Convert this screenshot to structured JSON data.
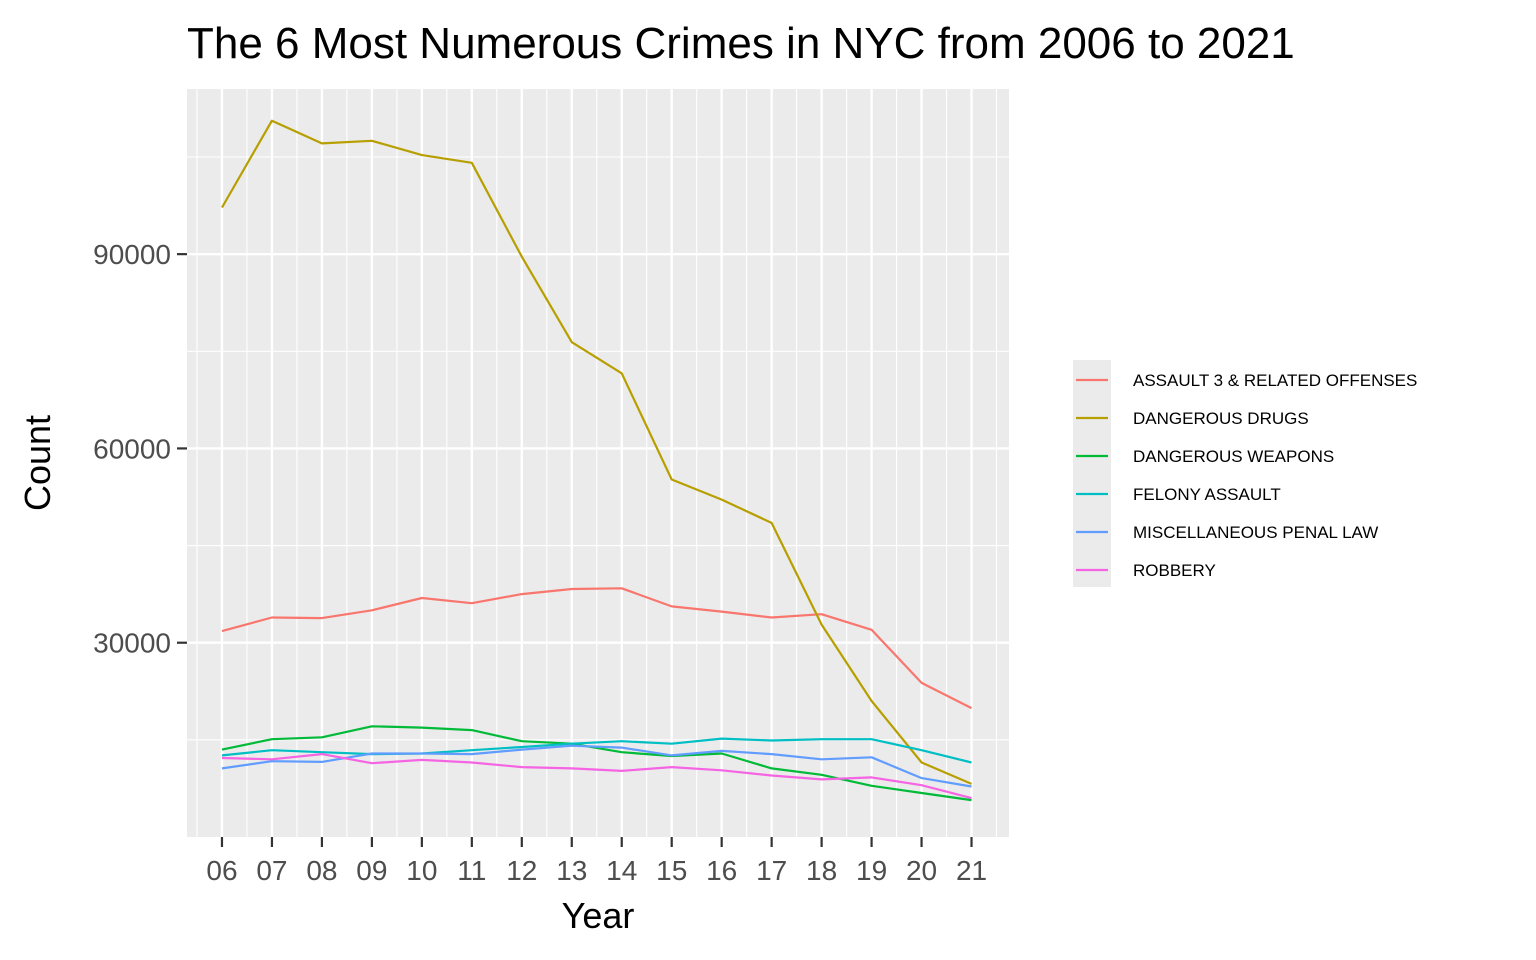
{
  "chart_data": {
    "type": "line",
    "title": "The 6 Most Numerous Crimes in NYC from 2006 to 2021",
    "xlabel": "Year",
    "ylabel": "Count",
    "x": [
      "06",
      "07",
      "08",
      "09",
      "10",
      "11",
      "12",
      "13",
      "14",
      "15",
      "16",
      "17",
      "18",
      "19",
      "20",
      "21"
    ],
    "xlim": [
      2005.3,
      2021.75
    ],
    "ylim": [
      0,
      115500
    ],
    "y_ticks": [
      30000,
      60000,
      90000
    ],
    "y_tick_labels": [
      "30000",
      "60000",
      "90000"
    ],
    "grid": true,
    "panel_background": "#ebebeb",
    "legend_position": "right",
    "series": [
      {
        "name": "ASSAULT 3 & RELATED OFFENSES",
        "color": "#f8766d",
        "values": [
          31800,
          33900,
          33800,
          35000,
          36900,
          36100,
          37500,
          38300,
          38400,
          35600,
          34800,
          33900,
          34400,
          32000,
          23800,
          19900
        ]
      },
      {
        "name": "DANGEROUS DRUGS",
        "color": "#b79f00",
        "values": [
          97200,
          110600,
          107100,
          107500,
          105300,
          104100,
          89600,
          76400,
          71600,
          55200,
          52100,
          48500,
          32800,
          21000,
          11500,
          8200
        ]
      },
      {
        "name": "DANGEROUS WEAPONS",
        "color": "#00ba38",
        "values": [
          13500,
          15100,
          15400,
          17100,
          16900,
          16500,
          14800,
          14400,
          13100,
          12500,
          12900,
          10600,
          9600,
          7900,
          6800,
          5700
        ]
      },
      {
        "name": "FELONY ASSAULT",
        "color": "#00bfc4",
        "values": [
          12600,
          13400,
          13100,
          12800,
          12900,
          13400,
          13900,
          14400,
          14800,
          14400,
          15200,
          14900,
          15100,
          15100,
          13400,
          11500
        ]
      },
      {
        "name": "MISCELLANEOUS PENAL LAW",
        "color": "#619cff",
        "values": [
          10600,
          11700,
          11600,
          12900,
          12900,
          12800,
          13500,
          14100,
          13800,
          12600,
          13300,
          12800,
          12000,
          12300,
          9100,
          7800
        ]
      },
      {
        "name": "ROBBERY",
        "color": "#f564e3",
        "values": [
          12200,
          12000,
          12800,
          11400,
          11900,
          11500,
          10800,
          10600,
          10200,
          10800,
          10300,
          9500,
          8900,
          9200,
          8000,
          6000
        ]
      }
    ]
  }
}
